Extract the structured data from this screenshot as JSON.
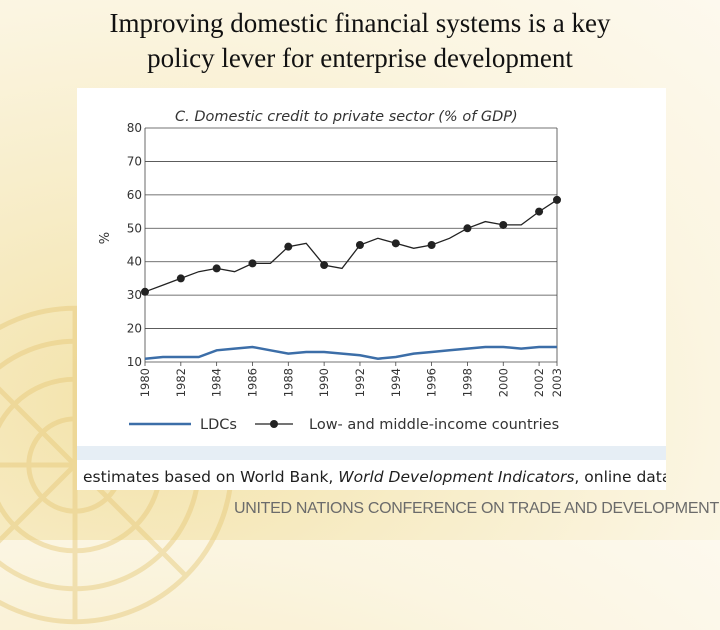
{
  "slide": {
    "title_line1": "Improving domestic financial systems is a key",
    "title_line2": "policy lever for enterprise development"
  },
  "source": {
    "prefix": "estimates based on World Bank, ",
    "publication": "World Development Indicators",
    "suffix": ", online data."
  },
  "footer": {
    "organization": "UNITED NATIONS CONFERENCE ON TRADE AND DEVELOPMENT"
  },
  "chart_data": {
    "type": "line",
    "title": "C. Domestic credit to private sector (% of GDP)",
    "ylabel": "%",
    "xlabel": "",
    "ylim": [
      10,
      80
    ],
    "xlim": [
      1980,
      2003
    ],
    "yticks": [
      10,
      20,
      30,
      40,
      50,
      60,
      70,
      80
    ],
    "xticks": [
      1980,
      1982,
      1984,
      1986,
      1988,
      1990,
      1992,
      1994,
      1996,
      1998,
      2000,
      2002,
      2003
    ],
    "grid": "horizontal",
    "legend_position": "bottom",
    "x": [
      1980,
      1981,
      1982,
      1983,
      1984,
      1985,
      1986,
      1987,
      1988,
      1989,
      1990,
      1991,
      1992,
      1993,
      1994,
      1995,
      1996,
      1997,
      1998,
      1999,
      2000,
      2001,
      2002,
      2003
    ],
    "series": [
      {
        "name": "LDCs",
        "color": "#3c6ea8",
        "marker": "none",
        "values": [
          11,
          11.5,
          11.5,
          11.5,
          13.5,
          14,
          14.5,
          13.5,
          12.5,
          13,
          13,
          12.5,
          12,
          11,
          11.5,
          12.5,
          13,
          13.5,
          14,
          14.5,
          14.5,
          14,
          14.5,
          14.5
        ]
      },
      {
        "name": "Low- and middle-income countries",
        "color": "#222222",
        "marker": "circle",
        "values": [
          31,
          33,
          35,
          37,
          38,
          37,
          39.5,
          39.5,
          44.5,
          45.5,
          39,
          38,
          45,
          47,
          45.5,
          44,
          45,
          47,
          50,
          52,
          51,
          51,
          55,
          58.5
        ],
        "marker_years": [
          1980,
          1982,
          1984,
          1986,
          1988,
          1990,
          1992,
          1994,
          1996,
          1998,
          2000,
          2002,
          2003
        ]
      }
    ]
  }
}
